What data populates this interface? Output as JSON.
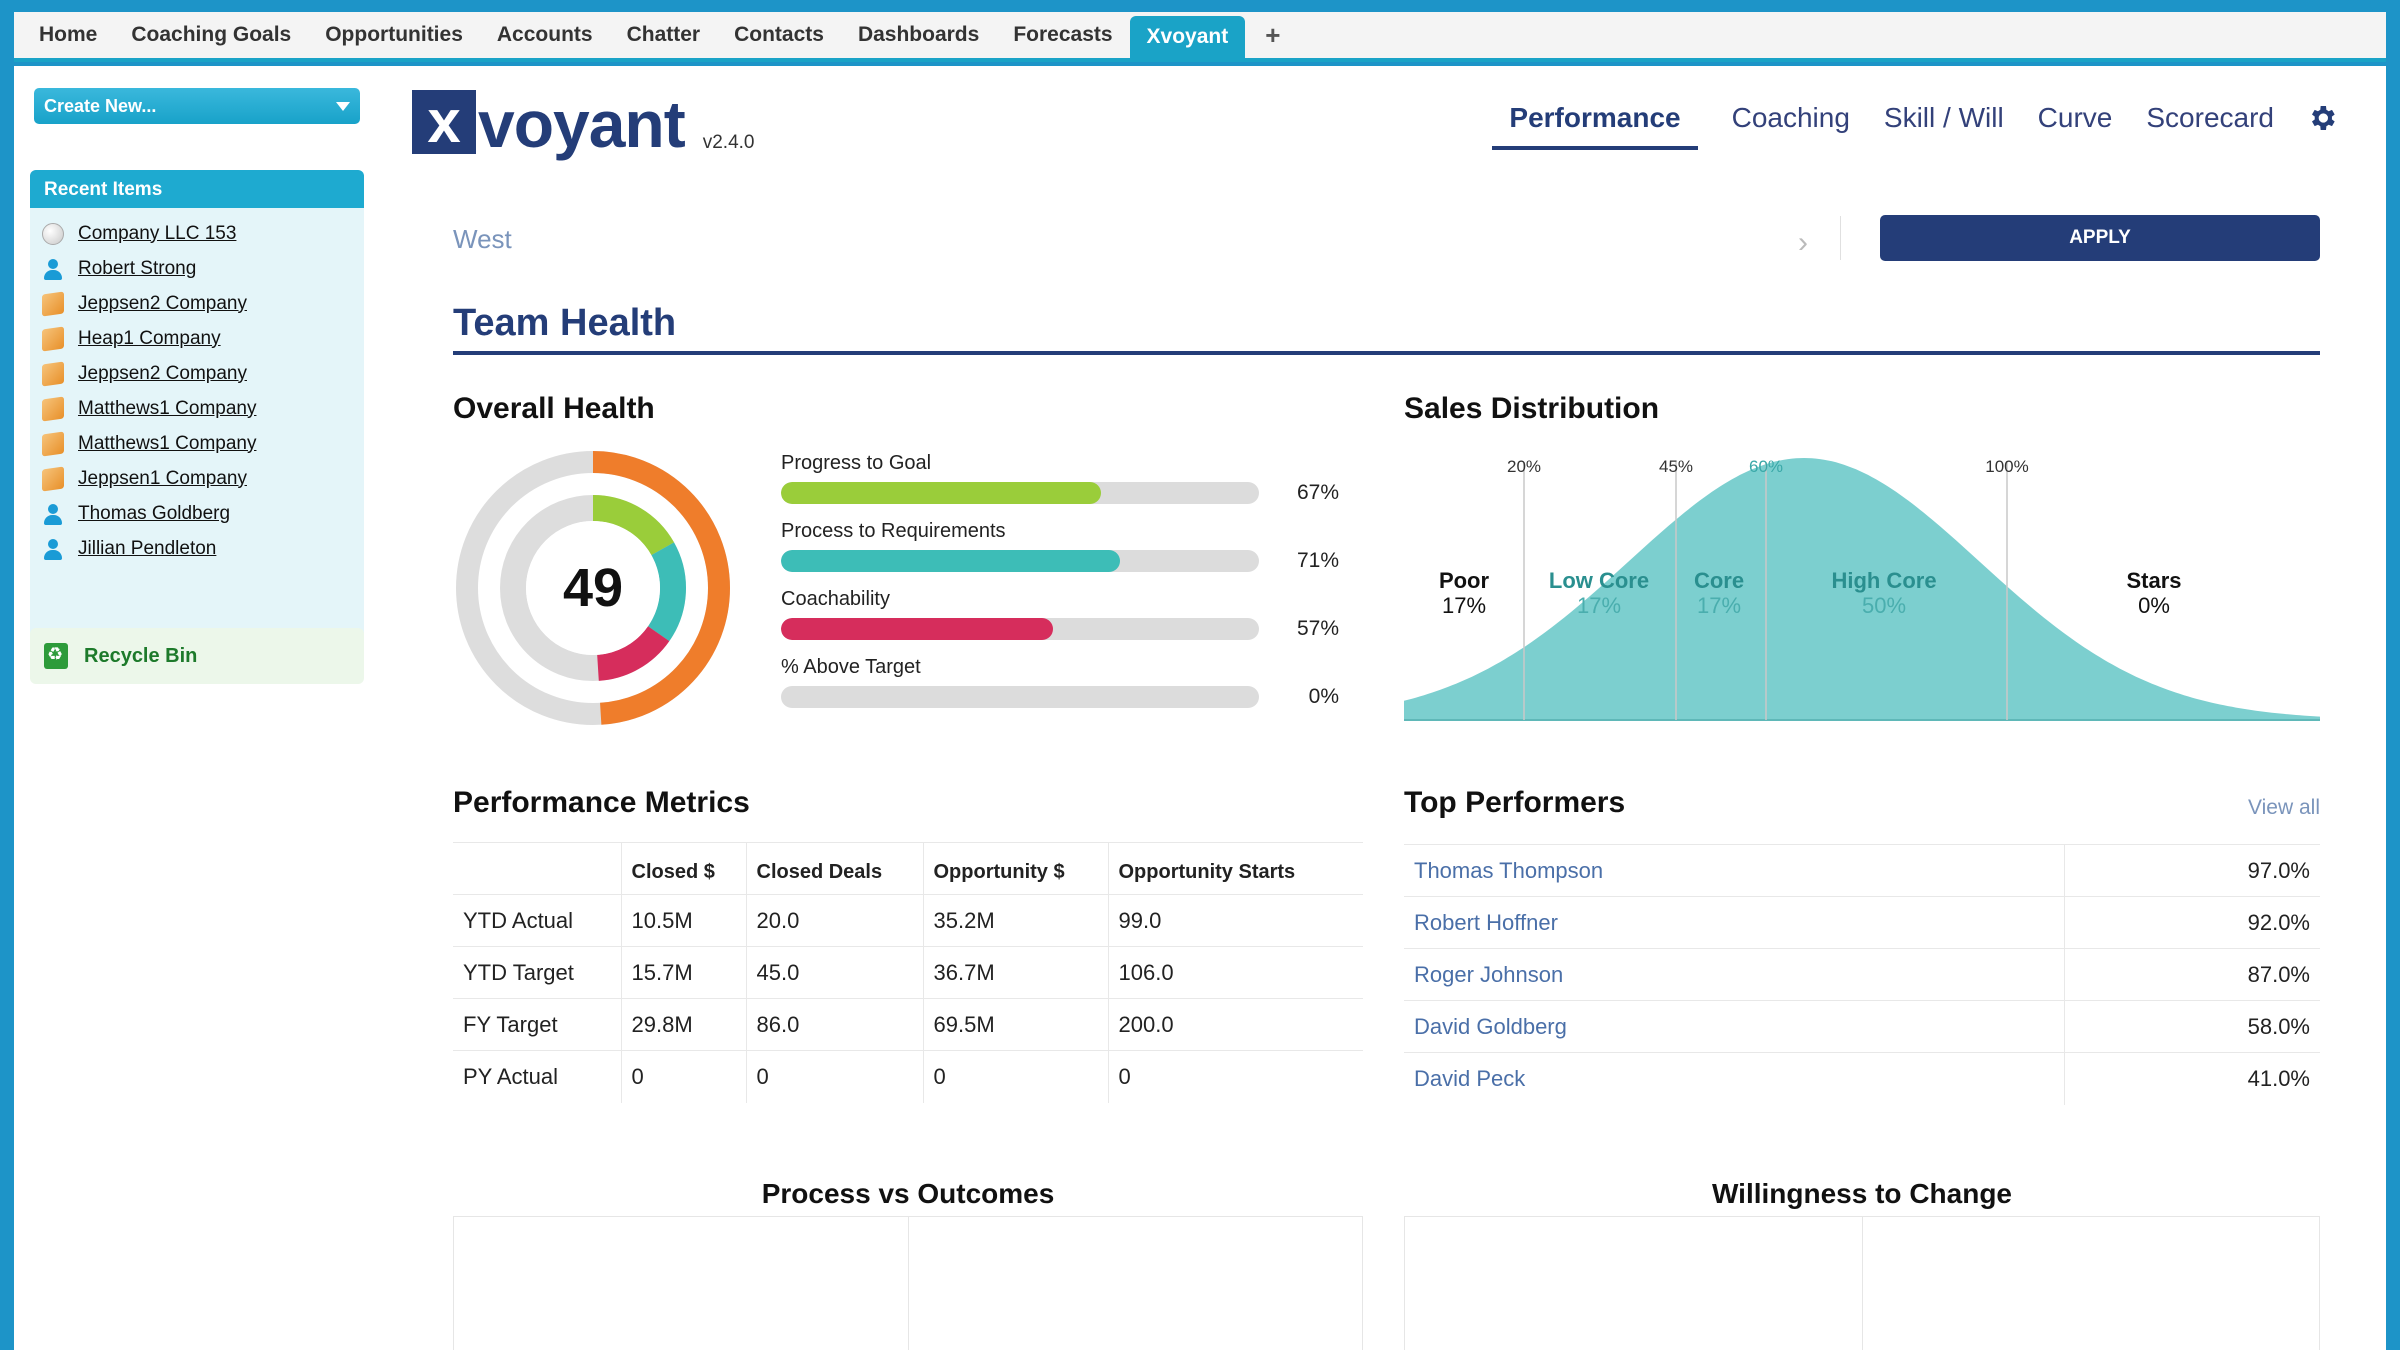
{
  "top_tabs": [
    {
      "label": "Home"
    },
    {
      "label": "Coaching Goals"
    },
    {
      "label": "Opportunities"
    },
    {
      "label": "Accounts"
    },
    {
      "label": "Chatter"
    },
    {
      "label": "Contacts"
    },
    {
      "label": "Dashboards"
    },
    {
      "label": "Forecasts"
    },
    {
      "label": "Xvoyant"
    },
    {
      "label": "+"
    }
  ],
  "sidebar": {
    "create_new": "Create New...",
    "recent_title": "Recent Items",
    "recent_items": [
      {
        "label": "Company LLC 153",
        "icon": "opportunity-icon"
      },
      {
        "label": "Robert Strong",
        "icon": "contact-icon"
      },
      {
        "label": "Jeppsen2 Company",
        "icon": "account-icon"
      },
      {
        "label": "Heap1 Company",
        "icon": "account-icon"
      },
      {
        "label": "Jeppsen2 Company",
        "icon": "account-icon"
      },
      {
        "label": "Matthews1 Company",
        "icon": "account-icon"
      },
      {
        "label": "Matthews1 Company",
        "icon": "account-icon"
      },
      {
        "label": "Jeppsen1 Company",
        "icon": "account-icon"
      },
      {
        "label": "Thomas Goldberg",
        "icon": "contact-icon"
      },
      {
        "label": "Jillian Pendleton",
        "icon": "contact-icon"
      }
    ],
    "recycle_bin": "Recycle Bin"
  },
  "header": {
    "logo_x": "x",
    "logo_word": "voyant",
    "version": "v2.4.0",
    "nav": [
      {
        "label": "Performance",
        "active": true
      },
      {
        "label": "Coaching"
      },
      {
        "label": "Skill / Will"
      },
      {
        "label": "Curve"
      },
      {
        "label": "Scorecard"
      }
    ],
    "settings_icon": "gear-icon"
  },
  "filter": {
    "region": "West",
    "apply": "APPLY"
  },
  "team_health": {
    "title": "Team Health",
    "overall_health": {
      "title": "Overall Health",
      "score": "49",
      "bars": [
        {
          "label": "Progress to Goal",
          "pct": "67%",
          "value": 0.67,
          "color": "#9acd3a"
        },
        {
          "label": "Process to Requirements",
          "pct": "71%",
          "value": 0.71,
          "color": "#3dbdb7"
        },
        {
          "label": "Coachability",
          "pct": "57%",
          "value": 0.57,
          "color": "#d62d5c"
        },
        {
          "label": "% Above Target",
          "pct": "0%",
          "value": 0.0,
          "color": "#cccccc"
        }
      ],
      "outer_ring_color": "#ef7d2b",
      "track_color": "#dddddd"
    },
    "sales_distribution": {
      "title": "Sales Distribution",
      "markers": [
        "20%",
        "45%",
        "60%",
        "100%"
      ],
      "segments": [
        {
          "name": "Poor",
          "pct": "17%"
        },
        {
          "name": "Low Core",
          "pct": "17%"
        },
        {
          "name": "Core",
          "pct": "17%"
        },
        {
          "name": "High Core",
          "pct": "50%"
        },
        {
          "name": "Stars",
          "pct": "0%"
        }
      ],
      "fill_color": "#7ccfcf"
    }
  },
  "performance_metrics": {
    "title": "Performance Metrics",
    "columns": [
      "",
      "Closed $",
      "Closed Deals",
      "Opportunity $",
      "Opportunity Starts"
    ],
    "rows": [
      [
        "YTD Actual",
        "10.5M",
        "20.0",
        "35.2M",
        "99.0"
      ],
      [
        "YTD Target",
        "15.7M",
        "45.0",
        "36.7M",
        "106.0"
      ],
      [
        "FY Target",
        "29.8M",
        "86.0",
        "69.5M",
        "200.0"
      ],
      [
        "PY Actual",
        "0",
        "0",
        "0",
        "0"
      ]
    ]
  },
  "top_performers": {
    "title": "Top Performers",
    "view_all": "View all",
    "rows": [
      {
        "name": "Thomas Thompson",
        "value": "97.0%"
      },
      {
        "name": "Robert Hoffner",
        "value": "92.0%"
      },
      {
        "name": "Roger Johnson",
        "value": "87.0%"
      },
      {
        "name": "David Goldberg",
        "value": "58.0%"
      },
      {
        "name": "David Peck",
        "value": "41.0%"
      }
    ]
  },
  "bottom": {
    "process_vs_outcomes": "Process vs Outcomes",
    "willingness_to_change": "Willingness to Change"
  }
}
